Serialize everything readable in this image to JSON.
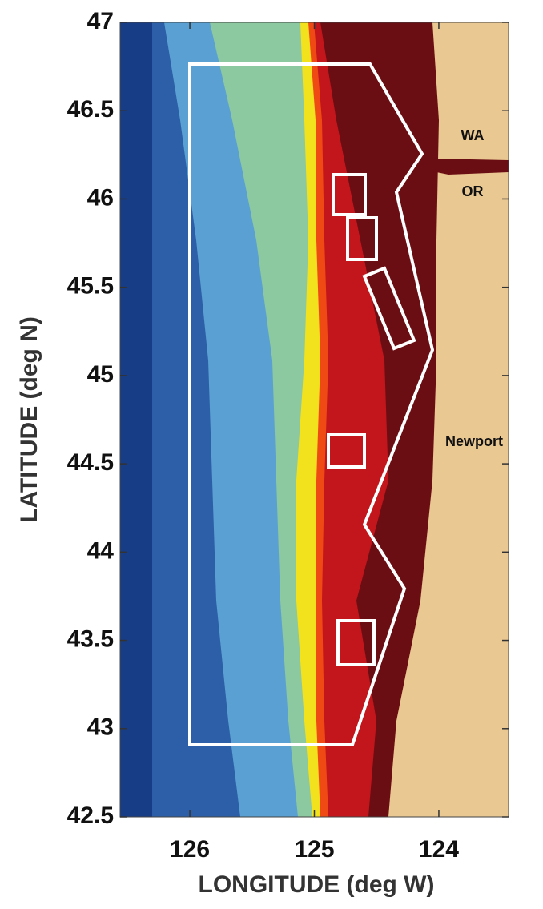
{
  "chart_data": {
    "type": "map",
    "x_label": "LONGITUDE (deg W)",
    "y_label": "LATITUDE (deg N)",
    "xlim": [
      126.56,
      123.44
    ],
    "ylim": [
      42.5,
      47
    ],
    "xticks": [
      126,
      125,
      124
    ],
    "yticks": [
      42.5,
      43,
      43.5,
      44,
      44.5,
      45,
      45.5,
      46,
      46.5,
      47
    ],
    "annotations": [
      "WA",
      "OR",
      "Newport"
    ]
  }
}
